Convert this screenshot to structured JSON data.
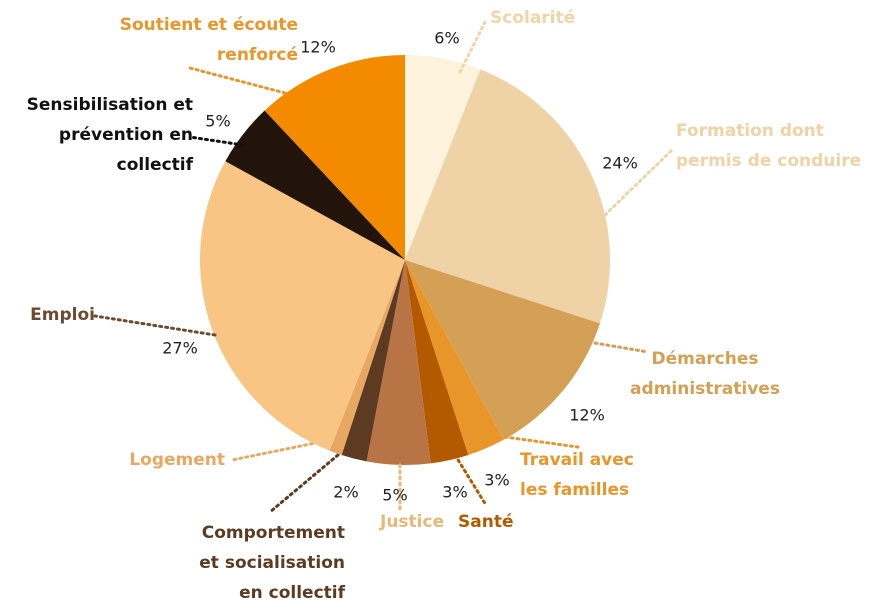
{
  "chart_data": {
    "type": "pie",
    "categories": [
      "Scolarité",
      "Formation dont\npermis de conduire",
      "Démarches\nadministratives",
      "Travail avec\nles familles",
      "Santé",
      "Justice",
      "Comportement\net socialisation\nen collectif",
      "Logement",
      "Emploi",
      "Sensibilisation et\nprévention en\ncollectif",
      "Soutient et écoute\nrenforcé"
    ],
    "values": [
      6,
      24,
      12,
      3,
      3,
      5,
      2,
      1,
      27,
      5,
      12
    ],
    "value_labels": [
      "6%",
      "24%",
      "12%",
      "3%",
      "3%",
      "5%",
      "2%",
      null,
      "27%",
      "5%",
      "12%"
    ],
    "colors": [
      "#fdf3dc",
      "#efd2a6",
      "#d4a055",
      "#e8952a",
      "#b35a00",
      "#b87444",
      "#5c3b22",
      "#e8a862",
      "#f8c585",
      "#22140a",
      "#f38a00"
    ],
    "label_colors": [
      "#efd6a8",
      "#efd2a6",
      "#d4a055",
      "#e8952a",
      "#b35a00",
      "#e8b77a",
      "#5c3b22",
      "#e8a862",
      "#6b4a30",
      "#111111",
      "#e8952a"
    ]
  }
}
